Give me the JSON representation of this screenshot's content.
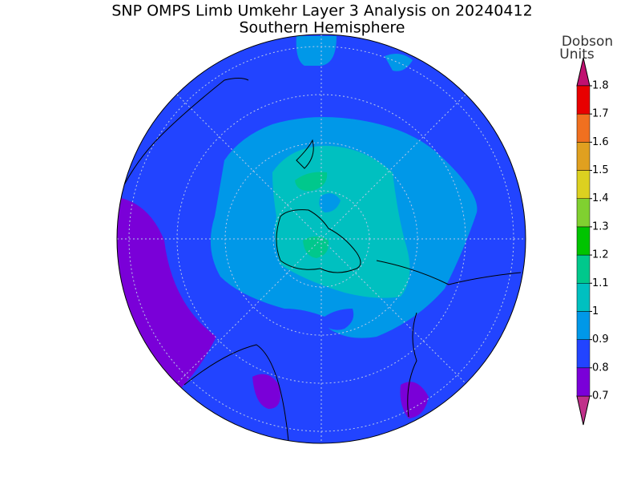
{
  "header": {
    "title": "SNP OMPS Limb Umkehr Layer 3 Analysis on 20240412",
    "subtitle": "Southern Hemisphere"
  },
  "colorbar": {
    "units": [
      "Dobson",
      "Units"
    ],
    "ticks": [
      0.7,
      0.8,
      0.9,
      1,
      1.1,
      1.2,
      1.3,
      1.4,
      1.5,
      1.6,
      1.7,
      1.8
    ],
    "colors": [
      "#c0308a",
      "#7a00d8",
      "#2244ff",
      "#0098e8",
      "#00c0c0",
      "#00c88c",
      "#00c400",
      "#80d030",
      "#dcd020",
      "#e0a020",
      "#f07020",
      "#e80000",
      "#c01070"
    ]
  }
}
